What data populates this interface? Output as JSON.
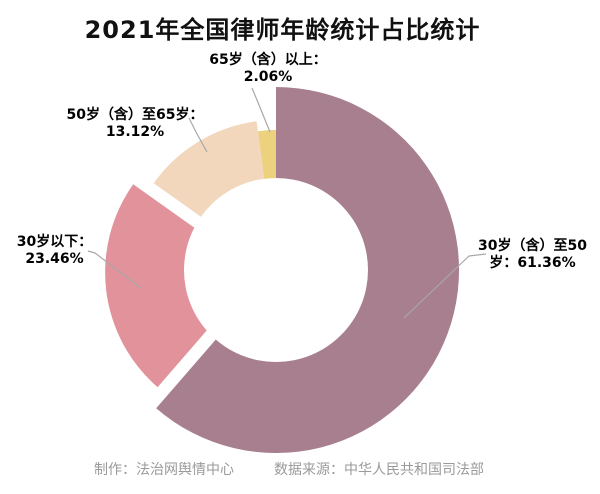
{
  "title": "2021年全国律师年龄统计占比统计",
  "chart_data": {
    "type": "pie",
    "subtype": "donut-rose",
    "title": "2021年全国律师年龄统计占比统计",
    "unit": "%",
    "start_angle": 0,
    "direction": "clockwise-from-top",
    "center": [
      276,
      270
    ],
    "hole_radius": 92,
    "hole_color": "#ffffff",
    "leader_line_color": "#a8a8a8",
    "slices": [
      {
        "name": "age-30-50",
        "label": "30岁（含）至50岁",
        "value": 61.36,
        "color": "#a77f8e",
        "radius": 183,
        "explode": 0
      },
      {
        "name": "age-under-30",
        "label": "30岁以下",
        "value": 23.46,
        "color": "#e1929a",
        "radius": 152,
        "explode": 19
      },
      {
        "name": "age-50-65",
        "label": "50岁（含）至65岁",
        "value": 13.12,
        "color": "#f2d7bd",
        "radius": 150,
        "explode": 0
      },
      {
        "name": "age-65-plus",
        "label": "65岁（含）以上",
        "value": 2.06,
        "color": "#ecd17e",
        "radius": 140,
        "explode": 0
      }
    ]
  },
  "labels": {
    "age_65_plus": {
      "line1": "65岁（含）以上：",
      "line2": "2.06%"
    },
    "age_50_65": {
      "line1": "50岁（含）至65岁：",
      "line2": "13.12%"
    },
    "age_under_30": {
      "line1": "30岁以下：",
      "line2": "23.46%"
    },
    "age_30_50": {
      "line1": "30岁（含）至50",
      "line2": "岁：61.36%"
    }
  },
  "footer": {
    "producer": "制作：法治网舆情中心",
    "source": "数据来源：中华人民共和国司法部"
  }
}
